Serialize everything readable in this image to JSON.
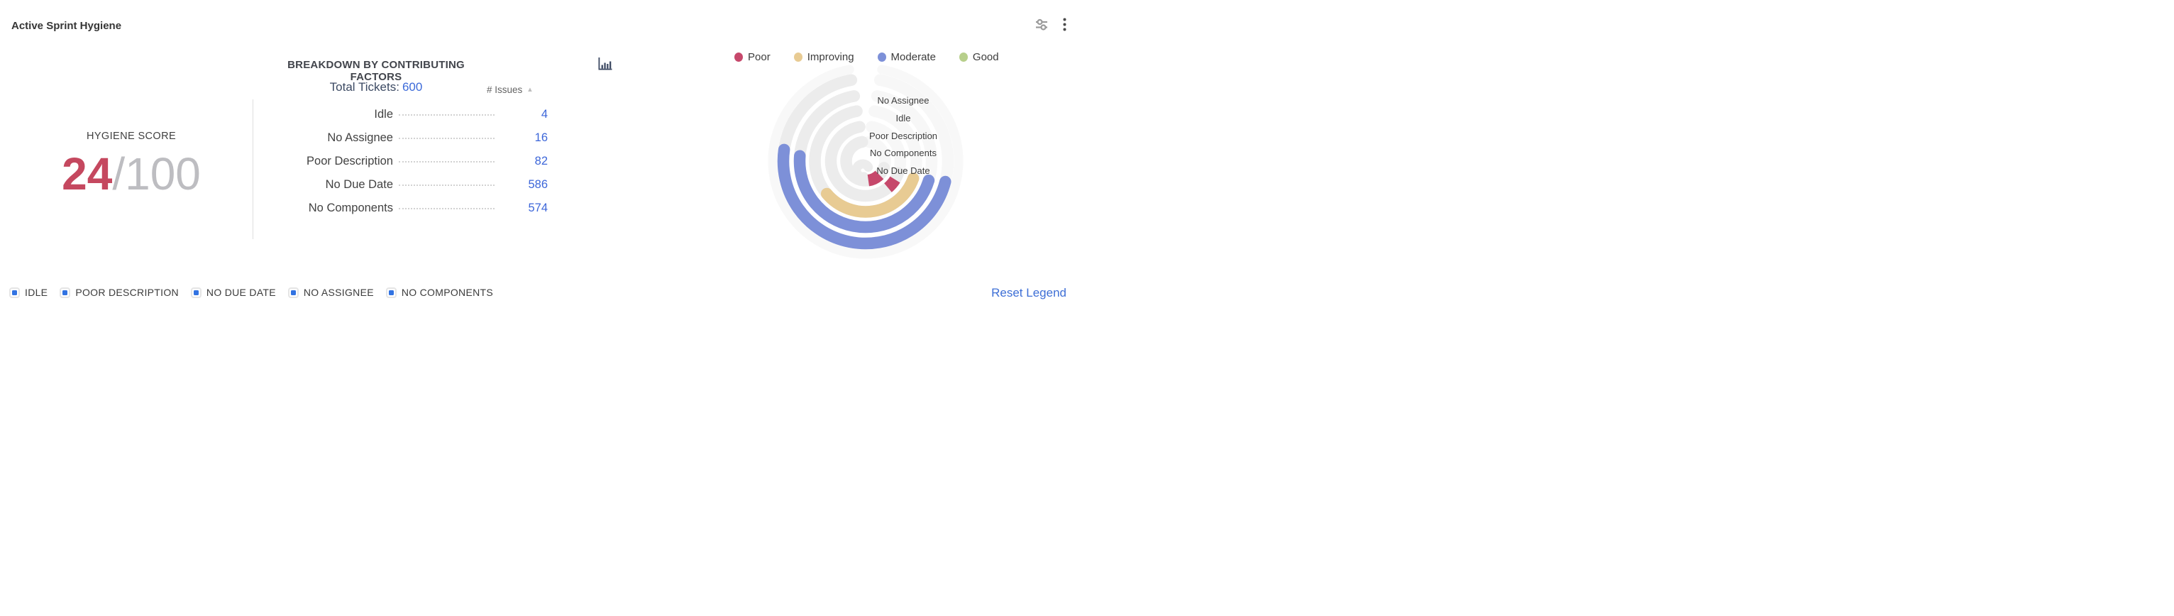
{
  "header": {
    "title": "Active Sprint Hygiene",
    "icons": {
      "settings": "sliders-icon",
      "menu": "kebab-menu-icon"
    }
  },
  "score": {
    "label": "HYGIENE SCORE",
    "value": "24",
    "separator": "/",
    "max": "100"
  },
  "breakdown": {
    "title": "BREAKDOWN BY CONTRIBUTING FACTORS",
    "total_label": "Total Tickets:",
    "total_value": "600",
    "column_header": "# Issues",
    "sort_icon": "▲",
    "rows": [
      {
        "label": "Idle",
        "value": "4"
      },
      {
        "label": "No Assignee",
        "value": "16"
      },
      {
        "label": "Poor Description",
        "value": "82"
      },
      {
        "label": "No Due Date",
        "value": "586"
      },
      {
        "label": "No Components",
        "value": "574"
      }
    ]
  },
  "status_legend": {
    "items": [
      {
        "label": "Poor",
        "color": "#c6486b"
      },
      {
        "label": "Improving",
        "color": "#e8cb93"
      },
      {
        "label": "Moderate",
        "color": "#7d90d8"
      },
      {
        "label": "Good",
        "color": "#b7cf8b"
      }
    ]
  },
  "bottom_legend": {
    "items": [
      {
        "label": "IDLE"
      },
      {
        "label": "POOR DESCRIPTION"
      },
      {
        "label": "NO DUE DATE"
      },
      {
        "label": "NO ASSIGNEE"
      },
      {
        "label": "NO COMPONENTS"
      }
    ],
    "reset_label": "Reset Legend"
  },
  "colors": {
    "accent_red": "#c5485f",
    "link_blue": "#3c66d9",
    "legend_checkbox_blue": "#3273e2",
    "icon_navy": "#3e4a63",
    "track_solid": "#ececec",
    "track_faint": "#f7f7f7"
  },
  "chart_data": {
    "type": "radial-bars",
    "title": "Sprint hygiene contributing factors",
    "total_tickets": 600,
    "categories": [
      "Idle",
      "No Assignee",
      "Poor Description",
      "No Due Date",
      "No Components"
    ],
    "values": [
      4,
      16,
      82,
      586,
      574
    ],
    "legend_position": "top-right",
    "radial": {
      "center": [
        150,
        145
      ],
      "track_width": 16.5,
      "track_color_solid": "#ececec",
      "track_color_faint": "#f7f7f7",
      "track_arc_faint": [
        10,
        110
      ],
      "track_arc_solid": [
        110,
        350
      ],
      "outer_faint_ring": {
        "radius": 131,
        "width": 13,
        "arc": [
          10,
          350
        ]
      },
      "rings": [
        {
          "label": "No Assignee",
          "status": "Moderate",
          "color": "#7d90d8",
          "radius": 116,
          "arc": [
            104.5,
            278
          ],
          "cap": "round",
          "label_y": 141.5
        },
        {
          "label": "Idle",
          "status": "Moderate",
          "color": "#7d90d8",
          "radius": 93,
          "arc": [
            107,
            274.5
          ],
          "cap": "round",
          "label_y": 166.5
        },
        {
          "label": "Poor Description",
          "status": "Improving",
          "color": "#e8cb93",
          "radius": 71.5,
          "arc": [
            110,
            230
          ],
          "cap": "round",
          "label_y": 192
        },
        {
          "label": "No Components",
          "status": "Poor",
          "color": "#c6486b",
          "radius": 49,
          "arc": [
            122,
            140
          ],
          "cap": "butt",
          "label_y": 216
        },
        {
          "label": "No Due Date",
          "status": "Poor",
          "color": "#c6486b",
          "radius": 27.5,
          "arc": [
            135,
            172
          ],
          "cap": "butt",
          "label_y": 240.5
        }
      ]
    }
  }
}
